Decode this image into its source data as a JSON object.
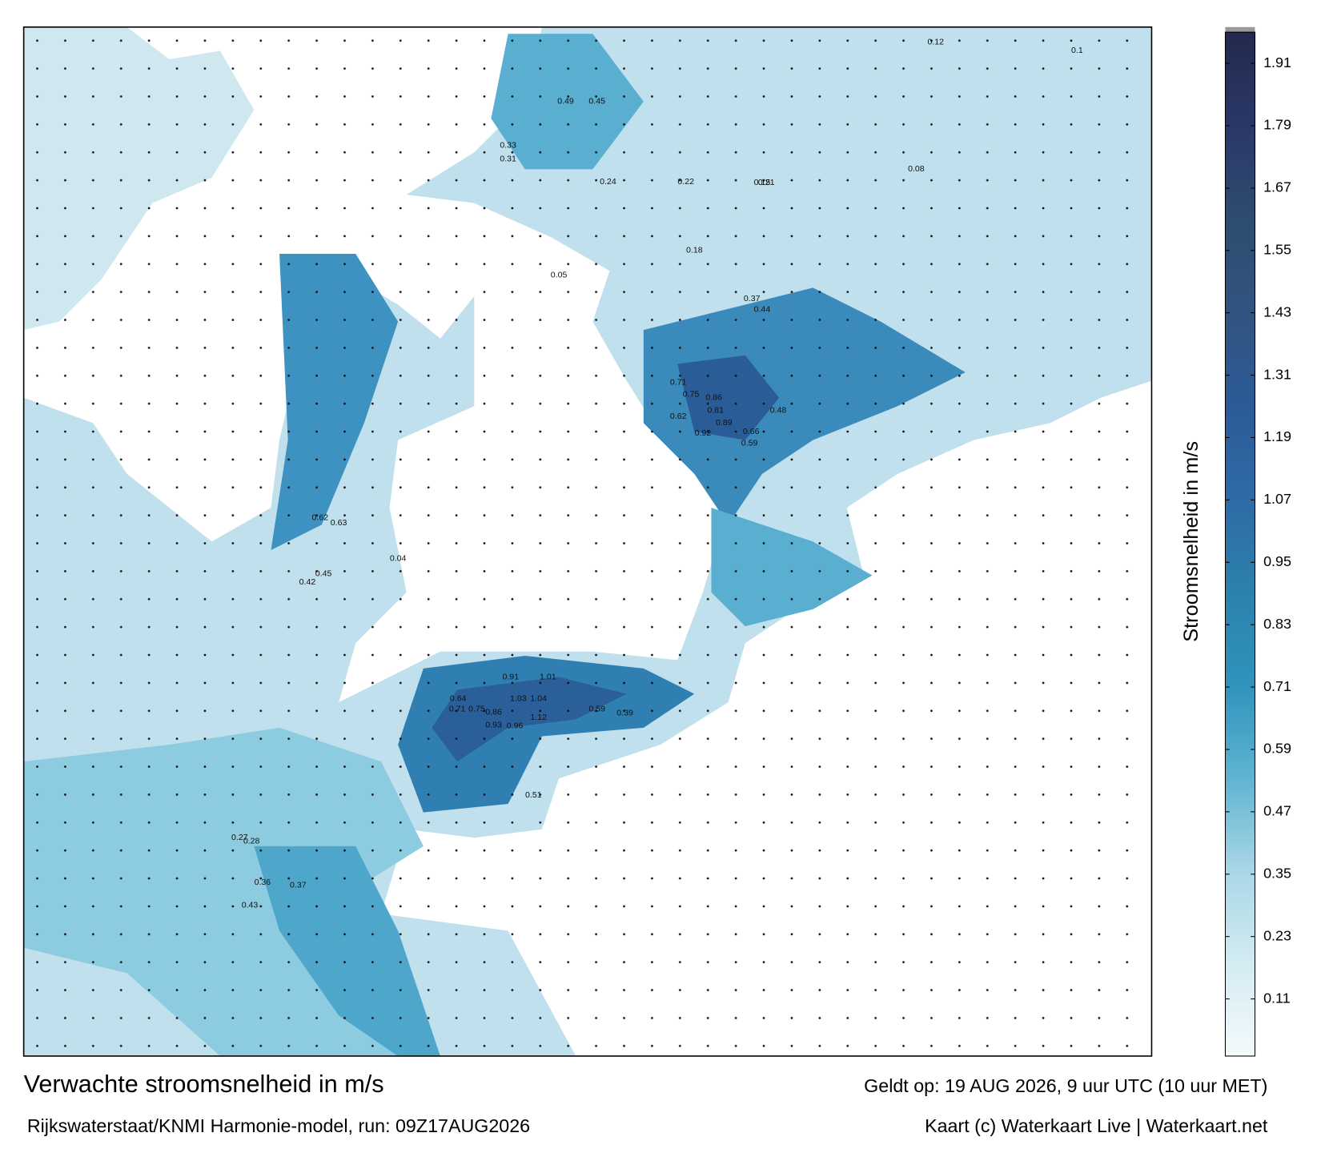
{
  "chart_data": {
    "type": "heatmap",
    "title": "Verwachte stroomsnelheid in m/s",
    "subtitle": "Rijkswaterstaat/KNMI Harmonie-model, run: 09Z17AUG2026",
    "valid_time": "Geldt op: 19 AUG 2026, 9 uur UTC (10 uur MET)",
    "credit": "Kaart (c) Waterkaart Live | Waterkaart.net",
    "colorbar_label": "Stroomsnelheid in m/s",
    "ylim": [
      0,
      1.97
    ],
    "yticks": [
      0.11,
      0.23,
      0.35,
      0.47,
      0.59,
      0.71,
      0.83,
      0.95,
      1.07,
      1.19,
      1.31,
      1.43,
      1.55,
      1.67,
      1.79,
      1.91
    ],
    "colors": [
      "#f4fafc",
      "#d3ebf2",
      "#a8d6e6",
      "#5fb3d1",
      "#2f93bc",
      "#2b81ad",
      "#2f6aa6",
      "#2c5a98",
      "#31547f",
      "#2d4d6f",
      "#2a3768",
      "#222a4d"
    ],
    "map_labels": [
      1.03,
      1.04,
      1.12,
      1.01,
      0.91,
      0.96,
      0.93,
      0.86,
      0.75,
      0.71,
      0.64,
      0.59,
      0.39,
      0.89,
      0.92,
      0.81,
      0.86,
      0.75,
      0.71,
      0.62,
      0.66,
      0.59,
      0.48,
      0.44,
      0.37,
      0.45,
      0.49,
      0.33,
      0.31,
      0.24,
      0.22,
      0.21,
      0.18,
      0.15,
      0.12,
      0.1,
      0.08,
      0.05,
      0.04,
      0.62,
      0.63,
      0.45,
      0.42,
      0.37,
      0.36,
      0.28,
      0.27,
      0.51,
      0.43
    ]
  }
}
